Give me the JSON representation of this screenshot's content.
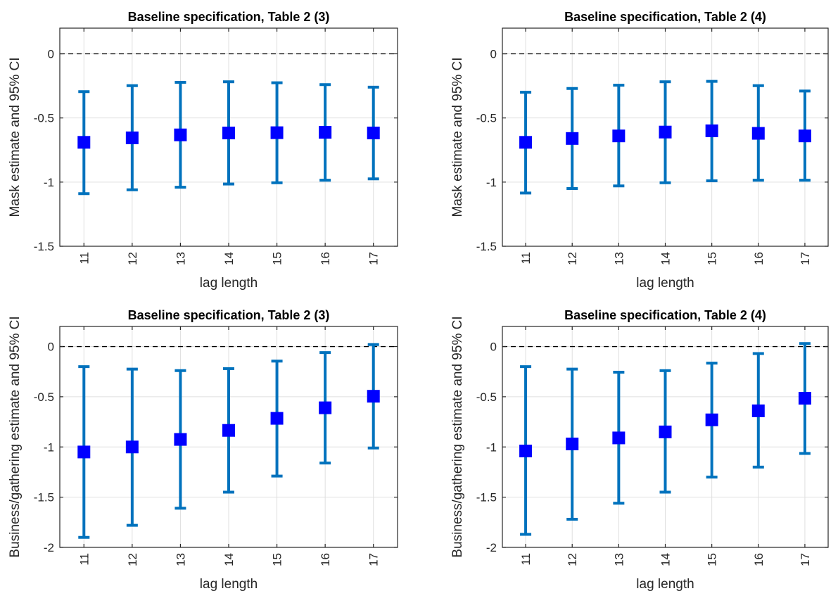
{
  "chart_data": [
    {
      "type": "errorbar",
      "title": "Baseline specification, Table 2 (3)",
      "xlabel": "lag length",
      "ylabel": "Mask estimate and 95% CI",
      "categories": [
        "11",
        "12",
        "13",
        "14",
        "15",
        "16",
        "17"
      ],
      "ylim": [
        -1.5,
        0.2
      ],
      "yticks": [
        -1.5,
        -1,
        -0.5,
        0
      ],
      "ytick_labels": [
        "-1.5",
        "-1",
        "-0.5",
        "0"
      ],
      "reference_line": 0,
      "grid": true,
      "series": [
        {
          "estimate": [
            -0.69,
            -0.655,
            -0.632,
            -0.617,
            -0.615,
            -0.612,
            -0.617
          ],
          "lower": [
            -1.09,
            -1.06,
            -1.04,
            -1.015,
            -1.005,
            -0.985,
            -0.975
          ],
          "upper": [
            -0.295,
            -0.248,
            -0.222,
            -0.218,
            -0.226,
            -0.24,
            -0.26
          ]
        }
      ],
      "colors": {
        "bar": "#0072BD",
        "marker": "#0000FF"
      }
    },
    {
      "type": "errorbar",
      "title": "Baseline specification, Table 2 (4)",
      "xlabel": "lag length",
      "ylabel": "Mask estimate and 95% CI",
      "categories": [
        "11",
        "12",
        "13",
        "14",
        "15",
        "16",
        "17"
      ],
      "ylim": [
        -1.5,
        0.2
      ],
      "yticks": [
        -1.5,
        -1,
        -0.5,
        0
      ],
      "ytick_labels": [
        "-1.5",
        "-1",
        "-0.5",
        "0"
      ],
      "reference_line": 0,
      "grid": true,
      "series": [
        {
          "estimate": [
            -0.69,
            -0.66,
            -0.64,
            -0.61,
            -0.6,
            -0.62,
            -0.64
          ],
          "lower": [
            -1.085,
            -1.05,
            -1.03,
            -1.005,
            -0.99,
            -0.985,
            -0.985
          ],
          "upper": [
            -0.3,
            -0.27,
            -0.245,
            -0.218,
            -0.215,
            -0.248,
            -0.29
          ]
        }
      ],
      "colors": {
        "bar": "#0072BD",
        "marker": "#0000FF"
      }
    },
    {
      "type": "errorbar",
      "title": "Baseline specification, Table 2 (3)",
      "xlabel": "lag length",
      "ylabel": "Business/gathering estimate and 95% CI",
      "categories": [
        "11",
        "12",
        "13",
        "14",
        "15",
        "16",
        "17"
      ],
      "ylim": [
        -2,
        0.2
      ],
      "yticks": [
        -2,
        -1.5,
        -1,
        -0.5,
        0
      ],
      "ytick_labels": [
        "-2",
        "-1.5",
        "-1",
        "-0.5",
        "0"
      ],
      "reference_line": 0,
      "grid": true,
      "series": [
        {
          "estimate": [
            -1.05,
            -1.0,
            -0.925,
            -0.835,
            -0.715,
            -0.61,
            -0.495
          ],
          "lower": [
            -1.9,
            -1.78,
            -1.61,
            -1.45,
            -1.29,
            -1.16,
            -1.01
          ],
          "upper": [
            -0.2,
            -0.225,
            -0.24,
            -0.22,
            -0.145,
            -0.06,
            0.02
          ]
        }
      ],
      "colors": {
        "bar": "#0072BD",
        "marker": "#0000FF"
      }
    },
    {
      "type": "errorbar",
      "title": "Baseline specification, Table 2 (4)",
      "xlabel": "lag length",
      "ylabel": "Business/gathering estimate and 95% CI",
      "categories": [
        "11",
        "12",
        "13",
        "14",
        "15",
        "16",
        "17"
      ],
      "ylim": [
        -2,
        0.2
      ],
      "yticks": [
        -2,
        -1.5,
        -1,
        -0.5,
        0
      ],
      "ytick_labels": [
        "-2",
        "-1.5",
        "-1",
        "-0.5",
        "0"
      ],
      "reference_line": 0,
      "grid": true,
      "series": [
        {
          "estimate": [
            -1.04,
            -0.97,
            -0.91,
            -0.85,
            -0.73,
            -0.64,
            -0.515
          ],
          "lower": [
            -1.87,
            -1.72,
            -1.56,
            -1.45,
            -1.3,
            -1.2,
            -1.065
          ],
          "upper": [
            -0.2,
            -0.225,
            -0.255,
            -0.24,
            -0.165,
            -0.07,
            0.03
          ]
        }
      ],
      "colors": {
        "bar": "#0072BD",
        "marker": "#0000FF"
      }
    }
  ]
}
